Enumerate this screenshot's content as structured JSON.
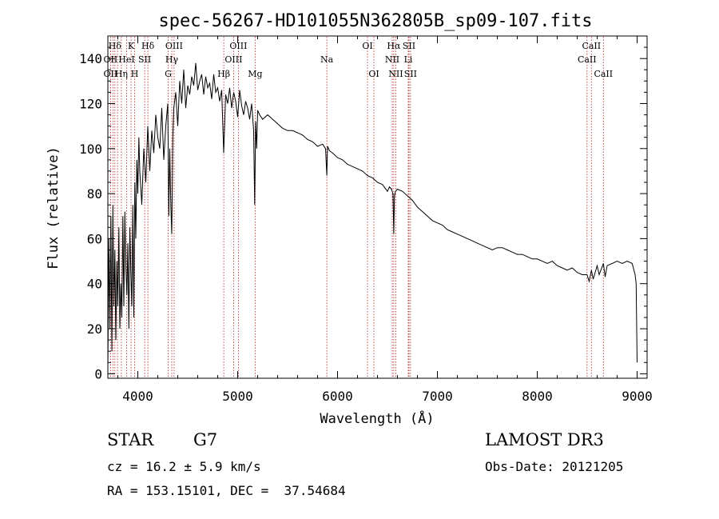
{
  "chart_data": {
    "type": "line",
    "title": "spec-56267-HD101055N362805B_sp09-107.fits",
    "xlabel": "Wavelength (Å)",
    "ylabel": "Flux (relative)",
    "xlim": [
      3700,
      9100
    ],
    "ylim": [
      -2,
      150
    ],
    "xticks": [
      4000,
      5000,
      6000,
      7000,
      8000,
      9000
    ],
    "xtick_labels": [
      "4000",
      "5000",
      "6000",
      "7000",
      "8000",
      "9000"
    ],
    "yticks": [
      0,
      20,
      40,
      60,
      80,
      100,
      120,
      140
    ],
    "ytick_labels": [
      "0",
      "20",
      "40",
      "60",
      "80",
      "100",
      "120",
      "140"
    ],
    "series": [
      {
        "name": "spectrum",
        "x": [
          3700,
          3710,
          3720,
          3730,
          3740,
          3750,
          3760,
          3770,
          3780,
          3790,
          3800,
          3810,
          3820,
          3830,
          3840,
          3850,
          3860,
          3870,
          3880,
          3890,
          3900,
          3910,
          3920,
          3930,
          3940,
          3950,
          3960,
          3970,
          3980,
          3990,
          4000,
          4010,
          4020,
          4040,
          4060,
          4080,
          4100,
          4120,
          4140,
          4160,
          4180,
          4200,
          4220,
          4240,
          4260,
          4280,
          4300,
          4310,
          4320,
          4330,
          4340,
          4350,
          4360,
          4380,
          4400,
          4420,
          4440,
          4460,
          4480,
          4500,
          4520,
          4540,
          4560,
          4580,
          4600,
          4620,
          4640,
          4660,
          4680,
          4700,
          4720,
          4740,
          4760,
          4780,
          4800,
          4820,
          4840,
          4860,
          4880,
          4900,
          4920,
          4940,
          4960,
          4980,
          5000,
          5020,
          5040,
          5060,
          5080,
          5100,
          5120,
          5140,
          5160,
          5170,
          5180,
          5190,
          5200,
          5220,
          5250,
          5300,
          5350,
          5400,
          5450,
          5500,
          5550,
          5600,
          5650,
          5700,
          5750,
          5800,
          5850,
          5880,
          5893,
          5900,
          5920,
          5950,
          6000,
          6050,
          6100,
          6150,
          6200,
          6250,
          6300,
          6350,
          6400,
          6450,
          6500,
          6520,
          6540,
          6555,
          6563,
          6570,
          6580,
          6600,
          6650,
          6700,
          6750,
          6800,
          6850,
          6900,
          6950,
          7000,
          7050,
          7100,
          7150,
          7200,
          7250,
          7300,
          7350,
          7400,
          7450,
          7500,
          7550,
          7600,
          7650,
          7700,
          7750,
          7800,
          7850,
          7900,
          7950,
          8000,
          8050,
          8100,
          8150,
          8200,
          8250,
          8300,
          8350,
          8400,
          8450,
          8498,
          8520,
          8542,
          8560,
          8600,
          8620,
          8662,
          8680,
          8700,
          8750,
          8800,
          8850,
          8900,
          8950,
          8980,
          8990,
          9000
        ],
        "y": [
          2,
          60,
          20,
          70,
          10,
          75,
          30,
          55,
          15,
          50,
          30,
          65,
          20,
          40,
          25,
          70,
          30,
          72,
          48,
          35,
          58,
          20,
          65,
          45,
          30,
          75,
          25,
          85,
          60,
          95,
          80,
          105,
          90,
          75,
          100,
          85,
          110,
          90,
          108,
          98,
          115,
          105,
          100,
          118,
          95,
          110,
          120,
          70,
          100,
          75,
          62,
          105,
          118,
          125,
          110,
          130,
          120,
          135,
          118,
          128,
          124,
          132,
          128,
          138,
          126,
          130,
          133,
          124,
          132,
          127,
          129,
          122,
          133,
          125,
          127,
          121,
          126,
          98,
          124,
          120,
          127,
          118,
          125,
          121,
          114,
          126,
          119,
          115,
          121,
          118,
          113,
          120,
          108,
          75,
          112,
          100,
          117,
          115,
          113,
          115,
          113,
          111,
          109,
          108,
          108,
          107,
          106,
          104,
          103,
          101,
          102,
          100,
          88,
          101,
          99,
          98,
          96,
          95,
          93,
          92,
          91,
          90,
          88,
          87,
          85,
          84,
          81,
          83,
          82,
          80,
          62,
          79,
          81,
          82,
          81,
          79,
          77,
          74,
          72,
          70,
          68,
          67,
          66,
          64,
          63,
          62,
          61,
          60,
          59,
          58,
          57,
          56,
          55,
          56,
          56,
          55,
          54,
          53,
          53,
          52,
          51,
          51,
          50,
          49,
          50,
          48,
          47,
          46,
          47,
          45,
          44,
          44,
          41,
          46,
          42,
          48,
          44,
          49,
          43,
          48,
          49,
          50,
          49,
          50,
          49,
          44,
          40,
          5
        ]
      }
    ],
    "line_marks": [
      {
        "label": "Hδ",
        "x": 3770,
        "row": 1
      },
      {
        "label": "K",
        "x": 3933,
        "row": 1
      },
      {
        "label": "Hδ",
        "x": 4101,
        "row": 1
      },
      {
        "label": "OIII",
        "x": 4363,
        "row": 1
      },
      {
        "label": "OIII",
        "x": 5007,
        "row": 1
      },
      {
        "label": "OI",
        "x": 6300,
        "row": 1
      },
      {
        "label": "Hα",
        "x": 6563,
        "row": 1
      },
      {
        "label": "SII",
        "x": 6716,
        "row": 1
      },
      {
        "label": "CaII",
        "x": 8542,
        "row": 1
      },
      {
        "label": "OII",
        "x": 3727,
        "row": 2
      },
      {
        "label": "HeI",
        "x": 3888,
        "row": 2
      },
      {
        "label": "SII",
        "x": 4069,
        "row": 2
      },
      {
        "label": "Hγ",
        "x": 4340,
        "row": 2
      },
      {
        "label": "OIII",
        "x": 4959,
        "row": 2
      },
      {
        "label": "Na",
        "x": 5893,
        "row": 2
      },
      {
        "label": "NII",
        "x": 6548,
        "row": 2
      },
      {
        "label": "Li",
        "x": 6708,
        "row": 2
      },
      {
        "label": "CaII",
        "x": 8498,
        "row": 2
      },
      {
        "label": "OII",
        "x": 3727,
        "row": 3
      },
      {
        "label": "Hη",
        "x": 3835,
        "row": 3
      },
      {
        "label": "H",
        "x": 3968,
        "row": 3
      },
      {
        "label": "G",
        "x": 4304,
        "row": 3
      },
      {
        "label": "Hβ",
        "x": 4861,
        "row": 3
      },
      {
        "label": "Mg",
        "x": 5175,
        "row": 3
      },
      {
        "label": "OI",
        "x": 6364,
        "row": 3
      },
      {
        "label": "NII",
        "x": 6583,
        "row": 3
      },
      {
        "label": "SII",
        "x": 6731,
        "row": 3
      },
      {
        "label": "CaII",
        "x": 8662,
        "row": 3
      }
    ],
    "vlines": [
      3727,
      3750,
      3770,
      3797,
      3835,
      3889,
      3933,
      3968,
      4069,
      4101,
      4304,
      4340,
      4363,
      4861,
      4959,
      5007,
      5175,
      5893,
      6300,
      6364,
      6548,
      6563,
      6583,
      6708,
      6716,
      6731,
      8498,
      8542,
      8662
    ]
  },
  "info": {
    "object_class": "STAR",
    "subclass": "G7",
    "survey": "LAMOST DR3",
    "redshift_line": "cz = 16.2 ± 5.9 km/s",
    "obs_date_line": "Obs-Date: 20121205",
    "coords_line": "RA = 153.15101, DEC =  37.54684"
  },
  "colors": {
    "line": "#000000",
    "marker": "#b22222",
    "background": "#ffffff"
  }
}
